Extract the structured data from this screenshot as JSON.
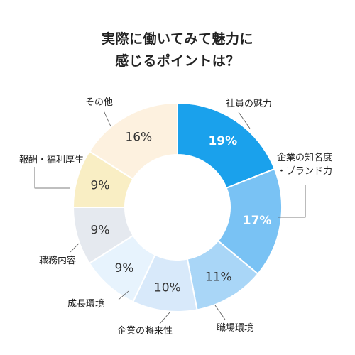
{
  "title": {
    "line1": "実際に働いてみて魅力に",
    "line2": "感じるポイントは？"
  },
  "chart_data": {
    "type": "pie",
    "donut": true,
    "unit": "%",
    "start_angle_deg": 0,
    "direction": "clockwise",
    "title": "実際に働いてみて魅力に感じるポイントは？",
    "slices": [
      {
        "label": "社員の魅力",
        "value": 19,
        "color": "#1aa1ec",
        "text_color": "#ffffff"
      },
      {
        "label": "企業の知名度\n・ブランド力",
        "value": 17,
        "color": "#79c2f4",
        "text_color": "#ffffff"
      },
      {
        "label": "職場環境",
        "value": 11,
        "color": "#a9d6f7",
        "text_color": "#333333"
      },
      {
        "label": "企業の将来性",
        "value": 10,
        "color": "#d8e9fa",
        "text_color": "#333333"
      },
      {
        "label": "成長環境",
        "value": 9,
        "color": "#e7f3fd",
        "text_color": "#333333"
      },
      {
        "label": "職務内容",
        "value": 9,
        "color": "#e5e9ef",
        "text_color": "#333333"
      },
      {
        "label": "報酬・福利厚生",
        "value": 9,
        "color": "#f9eec4",
        "text_color": "#333333"
      },
      {
        "label": "その他",
        "value": 16,
        "color": "#fdf1df",
        "text_color": "#333333"
      }
    ]
  }
}
